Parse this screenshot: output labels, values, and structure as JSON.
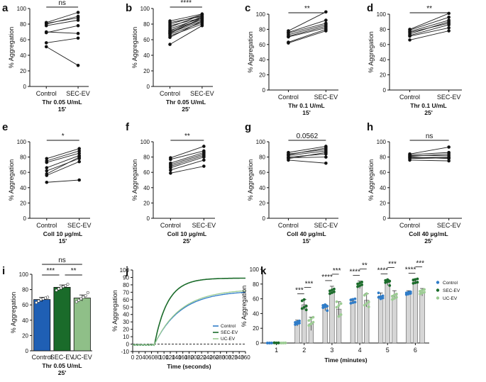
{
  "chart_data": [
    {
      "id": "a",
      "type": "scatter",
      "panel_label": "a",
      "ylabel": "% Aggregation",
      "ylim": [
        0,
        100
      ],
      "yticks": [
        0,
        20,
        40,
        60,
        80,
        100
      ],
      "categories": [
        "Control",
        "SEC-EV"
      ],
      "condition": "Thr 0.05 U/mL",
      "time": "15'",
      "significance": "ns",
      "pairs": [
        [
          82,
          95
        ],
        [
          81,
          88
        ],
        [
          80,
          90
        ],
        [
          78,
          85
        ],
        [
          70,
          68
        ],
        [
          69,
          78
        ],
        [
          56,
          62
        ],
        [
          51,
          27
        ]
      ]
    },
    {
      "id": "b",
      "type": "scatter",
      "panel_label": "b",
      "ylabel": "% Aggregation",
      "ylim": [
        0,
        100
      ],
      "yticks": [
        0,
        20,
        40,
        60,
        80,
        100
      ],
      "categories": [
        "Control",
        "SEC-EV"
      ],
      "condition": "Thr 0.05 U/mL",
      "time": "25'",
      "significance": "****",
      "pairs": [
        [
          84,
          93
        ],
        [
          82,
          90
        ],
        [
          80,
          92
        ],
        [
          78,
          88
        ],
        [
          76,
          92
        ],
        [
          74,
          88
        ],
        [
          72,
          86
        ],
        [
          71,
          90
        ],
        [
          70,
          86
        ],
        [
          69,
          84
        ],
        [
          68,
          88
        ],
        [
          67,
          82
        ],
        [
          65,
          80
        ],
        [
          63,
          84
        ],
        [
          54,
          78
        ]
      ]
    },
    {
      "id": "c",
      "type": "scatter",
      "panel_label": "c",
      "ylabel": "% Aggregation",
      "ylim": [
        0,
        100
      ],
      "yticks": [
        0,
        20,
        40,
        60,
        80,
        100
      ],
      "categories": [
        "Control",
        "SEC-EV"
      ],
      "condition": "Thr 0.1 U/mL",
      "time": "15'",
      "significance": "**",
      "pairs": [
        [
          78,
          103
        ],
        [
          76,
          92
        ],
        [
          75,
          88
        ],
        [
          73,
          86
        ],
        [
          71,
          84
        ],
        [
          70,
          82
        ],
        [
          63,
          80
        ],
        [
          62,
          78
        ]
      ]
    },
    {
      "id": "d",
      "type": "scatter",
      "panel_label": "d",
      "ylabel": "% Aggregation",
      "ylim": [
        0,
        100
      ],
      "yticks": [
        0,
        20,
        40,
        60,
        80,
        100
      ],
      "categories": [
        "Control",
        "SEC-EV"
      ],
      "condition": "Thr 0.1 U/mL",
      "time": "25'",
      "significance": "**",
      "pairs": [
        [
          80,
          101
        ],
        [
          79,
          96
        ],
        [
          77,
          92
        ],
        [
          76,
          88
        ],
        [
          74,
          90
        ],
        [
          72,
          86
        ],
        [
          71,
          82
        ],
        [
          66,
          78
        ]
      ]
    },
    {
      "id": "e",
      "type": "scatter",
      "panel_label": "e",
      "ylabel": "% Aggregation",
      "ylim": [
        0,
        100
      ],
      "yticks": [
        0,
        20,
        40,
        60,
        80,
        100
      ],
      "categories": [
        "Control",
        "SEC-EV"
      ],
      "condition": "Coll 10 µg/mL",
      "time": "15'",
      "significance": "*",
      "pairs": [
        [
          78,
          91
        ],
        [
          75,
          88
        ],
        [
          73,
          85
        ],
        [
          66,
          82
        ],
        [
          62,
          78
        ],
        [
          58,
          80
        ],
        [
          56,
          74
        ],
        [
          47,
          50
        ]
      ]
    },
    {
      "id": "f",
      "type": "scatter",
      "panel_label": "f",
      "ylabel": "% Aggregation",
      "ylim": [
        0,
        100
      ],
      "yticks": [
        0,
        20,
        40,
        60,
        80,
        100
      ],
      "categories": [
        "Control",
        "SEC-EV"
      ],
      "condition": "Coll 10 µg/mL",
      "time": "25'",
      "significance": "**",
      "pairs": [
        [
          79,
          94
        ],
        [
          77,
          88
        ],
        [
          72,
          86
        ],
        [
          70,
          84
        ],
        [
          68,
          82
        ],
        [
          66,
          80
        ],
        [
          63,
          76
        ],
        [
          59,
          68
        ]
      ]
    },
    {
      "id": "g",
      "type": "scatter",
      "panel_label": "g",
      "ylabel": "% Aggregation",
      "ylim": [
        0,
        100
      ],
      "yticks": [
        0,
        20,
        40,
        60,
        80,
        100
      ],
      "categories": [
        "Control",
        "SEC-EV"
      ],
      "condition": "Coll 40 µg/mL",
      "time": "15'",
      "significance": "0.0562",
      "pairs": [
        [
          86,
          94
        ],
        [
          84,
          90
        ],
        [
          83,
          92
        ],
        [
          82,
          88
        ],
        [
          80,
          84
        ],
        [
          79,
          80
        ],
        [
          78,
          86
        ],
        [
          76,
          72
        ]
      ]
    },
    {
      "id": "h",
      "type": "scatter",
      "panel_label": "h",
      "ylabel": "% Aggregation",
      "ylim": [
        0,
        100
      ],
      "yticks": [
        0,
        20,
        40,
        60,
        80,
        100
      ],
      "categories": [
        "Control",
        "SEC-EV"
      ],
      "condition": "Coll 40 µg/mL",
      "time": "25'",
      "significance": "ns",
      "pairs": [
        [
          84,
          93
        ],
        [
          83,
          86
        ],
        [
          82,
          82
        ],
        [
          81,
          84
        ],
        [
          80,
          78
        ],
        [
          79,
          80
        ],
        [
          78,
          79
        ],
        [
          76,
          75
        ]
      ]
    },
    {
      "id": "i",
      "type": "bar",
      "panel_label": "i",
      "ylabel": "% Aggregation",
      "ylim": [
        0,
        100
      ],
      "yticks": [
        0,
        20,
        40,
        60,
        80,
        100
      ],
      "categories": [
        "Control",
        "SEC-EV",
        "UC-EV"
      ],
      "condition": "Thr 0.05 U/mL",
      "time": "25'",
      "values": [
        67,
        83,
        69
      ],
      "errors": [
        3,
        3,
        4
      ],
      "colors": [
        "#1f5fb4",
        "#1a6b2a",
        "#8fbf88"
      ],
      "points": [
        [
          63,
          65,
          67,
          68,
          69,
          70
        ],
        [
          79,
          81,
          82,
          84,
          85,
          87
        ],
        [
          64,
          66,
          68,
          70,
          72,
          76
        ]
      ],
      "brackets": [
        {
          "from": 0,
          "to": 2,
          "label": "ns",
          "level": 2
        },
        {
          "from": 0,
          "to": 1,
          "label": "***",
          "level": 1
        },
        {
          "from": 1,
          "to": 2,
          "label": "**",
          "level": 1
        }
      ]
    },
    {
      "id": "j",
      "type": "line",
      "panel_label": "j",
      "ylabel": "% Aggregation",
      "xlabel": "Time (seconds)",
      "xlim": [
        0,
        360
      ],
      "ylim": [
        -10,
        100
      ],
      "xticks": [
        0,
        20,
        40,
        60,
        80,
        100,
        120,
        140,
        160,
        180,
        200,
        220,
        240,
        260,
        280,
        300,
        320,
        340,
        360
      ],
      "yticks": [
        -10,
        0,
        10,
        20,
        30,
        40,
        50,
        60,
        70,
        80,
        90,
        100
      ],
      "series": [
        {
          "name": "Control",
          "color": "#2f7cc8",
          "final": 70,
          "rate": 0.012
        },
        {
          "name": "SEC-EV",
          "color": "#1a6b2a",
          "final": 89,
          "rate": 0.024
        },
        {
          "name": "UC-EV",
          "color": "#9ccc93",
          "final": 72,
          "rate": 0.012
        }
      ],
      "baseline": 0,
      "onset": 70
    },
    {
      "id": "k",
      "type": "bar",
      "panel_label": "k",
      "ylabel": "% Aggregation",
      "xlabel": "Time (minutes)",
      "ylim": [
        0,
        100
      ],
      "yticks": [
        0,
        20,
        40,
        60,
        80,
        100
      ],
      "categories": [
        "1",
        "2",
        "3",
        "4",
        "5",
        "6"
      ],
      "series": [
        {
          "name": "Control",
          "color": "#2f7cc8",
          "values": [
            0,
            27,
            48,
            57,
            64,
            68
          ],
          "errors": [
            0.5,
            4,
            4,
            3,
            4,
            3
          ]
        },
        {
          "name": "SEC-EV",
          "color": "#1a6b2a",
          "values": [
            0,
            52,
            72,
            79,
            82,
            84
          ],
          "errors": [
            0.5,
            7,
            5,
            5,
            4,
            3
          ]
        },
        {
          "name": "UC-EV",
          "color": "#9ccc93",
          "values": [
            0,
            26,
            46,
            58,
            65,
            69
          ],
          "errors": [
            0.5,
            9,
            10,
            9,
            6,
            5
          ]
        }
      ],
      "sig_pairs": [
        {
          "cat": 1,
          "left": "***",
          "right": "***"
        },
        {
          "cat": 2,
          "left": "****",
          "right": "***"
        },
        {
          "cat": 3,
          "left": "****",
          "right": "**"
        },
        {
          "cat": 4,
          "left": "****",
          "right": "***"
        },
        {
          "cat": 5,
          "left": "****",
          "right": "***"
        }
      ]
    }
  ]
}
